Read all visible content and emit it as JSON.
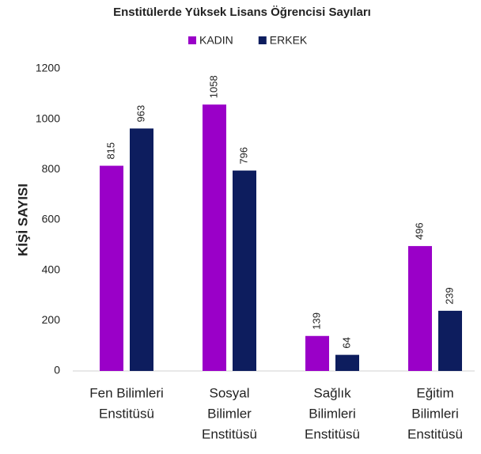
{
  "chart_data": {
    "type": "bar",
    "title": "Enstitülerde Yüksek Lisans Öğrencisi  Sayıları",
    "ylabel": "KİŞİ SAYISI",
    "categories": [
      [
        "Fen Bilimleri",
        "Enstitüsü"
      ],
      [
        "Sosyal",
        "Bilimler",
        "Enstitüsü"
      ],
      [
        "Sağlık",
        "Bilimleri",
        "Enstitüsü"
      ],
      [
        "Eğitim",
        "Bilimleri",
        "Enstitüsü"
      ]
    ],
    "series": [
      {
        "name": "KADIN",
        "color": "#9a00c8",
        "values": [
          815,
          1058,
          139,
          496
        ]
      },
      {
        "name": "ERKEK",
        "color": "#0d1d5e",
        "values": [
          963,
          796,
          64,
          239
        ]
      }
    ],
    "ylim": [
      0,
      1200
    ],
    "yticks": [
      0,
      200,
      400,
      600,
      800,
      1000,
      1200
    ],
    "grid": false,
    "legend": "top"
  }
}
